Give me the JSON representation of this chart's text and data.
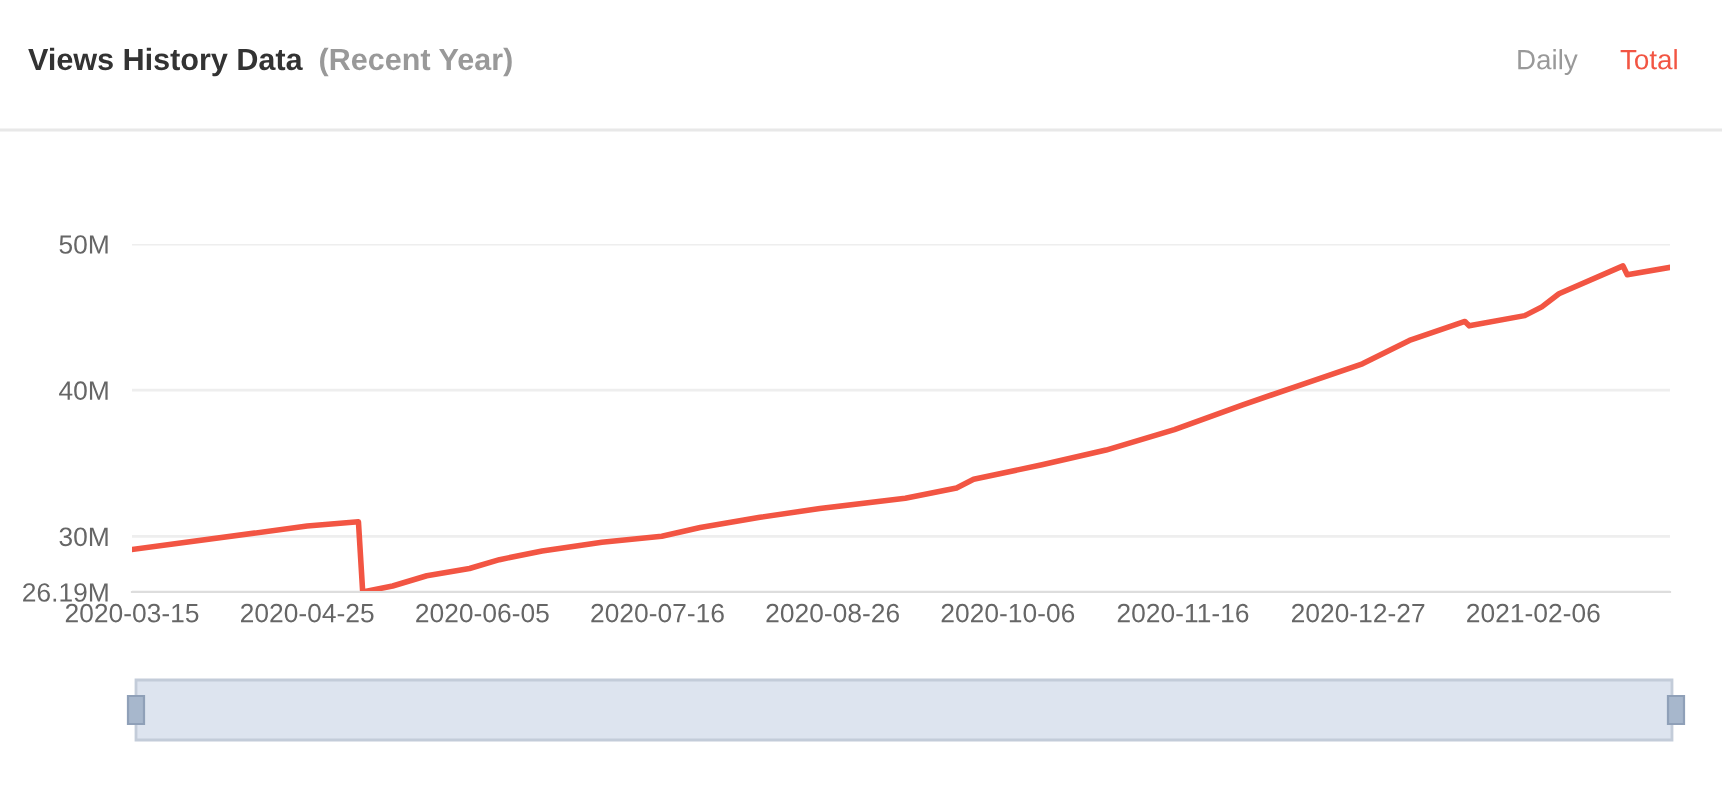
{
  "chart_data": {
    "type": "line",
    "title": "Views History Data",
    "subtitle": "(Recent Year)",
    "annotations": [
      "Daily",
      "Total"
    ],
    "x": [
      "2020-03-15",
      "2020-04-25",
      "2020-05-07",
      "2020-05-08",
      "2020-05-15",
      "2020-05-23",
      "2020-06-02",
      "2020-06-09",
      "2020-06-19",
      "2020-07-03",
      "2020-07-17",
      "2020-07-26",
      "2020-08-09",
      "2020-08-23",
      "2020-09-12",
      "2020-09-24",
      "2020-09-28",
      "2020-10-14",
      "2020-10-29",
      "2020-11-14",
      "2020-11-30",
      "2020-12-15",
      "2020-12-28",
      "2021-01-08",
      "2021-01-21",
      "2021-01-22",
      "2021-02-04",
      "2021-02-08",
      "2021-02-12",
      "2021-02-27",
      "2021-02-28",
      "2021-03-10"
    ],
    "series": [
      {
        "color": "#f25543",
        "values": [
          29.1,
          30.7,
          31.0,
          26.19,
          26.6,
          27.3,
          27.8,
          28.4,
          29.0,
          29.6,
          30.0,
          30.6,
          31.3,
          31.9,
          32.6,
          33.3,
          33.9,
          34.9,
          35.9,
          37.3,
          39.0,
          40.5,
          41.8,
          43.4,
          44.7,
          44.4,
          45.1,
          45.7,
          46.6,
          48.5,
          47.9,
          48.4
        ]
      }
    ],
    "xlim": [
      "2020-03-15",
      "2021-03-10"
    ],
    "xticks": [
      "2020-03-15",
      "2020-04-25",
      "2020-06-05",
      "2020-07-16",
      "2020-08-26",
      "2020-10-06",
      "2020-11-16",
      "2020-12-27",
      "2021-02-06"
    ],
    "ylim": [
      26.19,
      50
    ],
    "yticks": [
      {
        "value": 26.19,
        "label": "26.19M"
      },
      {
        "value": 30,
        "label": "30M"
      },
      {
        "value": 40,
        "label": "40M"
      },
      {
        "value": 50,
        "label": "50M"
      }
    ],
    "grid": "y",
    "marker": "none",
    "line_style": "solid"
  }
}
